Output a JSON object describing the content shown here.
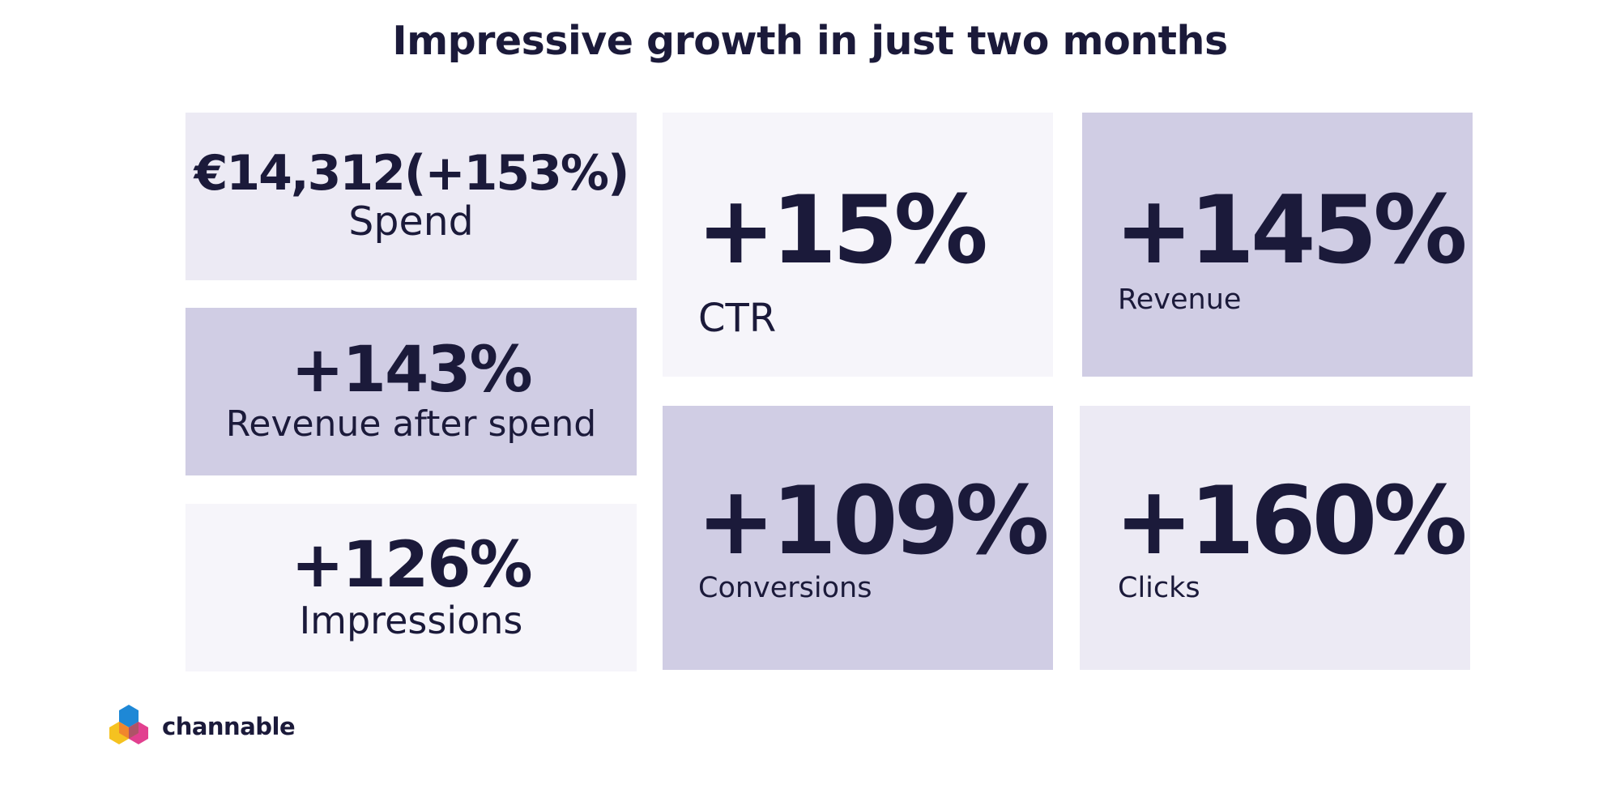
{
  "title": "Impressive growth in just two months",
  "cards": {
    "spend": {
      "value": "€14,312(+153%)",
      "label": "Spend"
    },
    "revenue_after_spend": {
      "value": "+143%",
      "label": "Revenue after spend"
    },
    "impressions": {
      "value": "+126%",
      "label": "Impressions"
    },
    "ctr": {
      "value": "+15%",
      "label": "CTR"
    },
    "revenue": {
      "value": "+145%",
      "label": "Revenue"
    },
    "conversions": {
      "value": "+109%",
      "label": "Conversions"
    },
    "clicks": {
      "value": "+160%",
      "label": "Clicks"
    }
  },
  "logo": {
    "text": "channable"
  },
  "colors": {
    "text": "#1b1a3a",
    "card_lavender": "#eceaf4",
    "card_purple": "#d0cde4",
    "card_pale": "#f6f5fa",
    "logo_blue": "#1e88d6",
    "logo_yellow": "#f5c220",
    "logo_pink": "#e2408f",
    "logo_orange": "#f07b2f"
  }
}
